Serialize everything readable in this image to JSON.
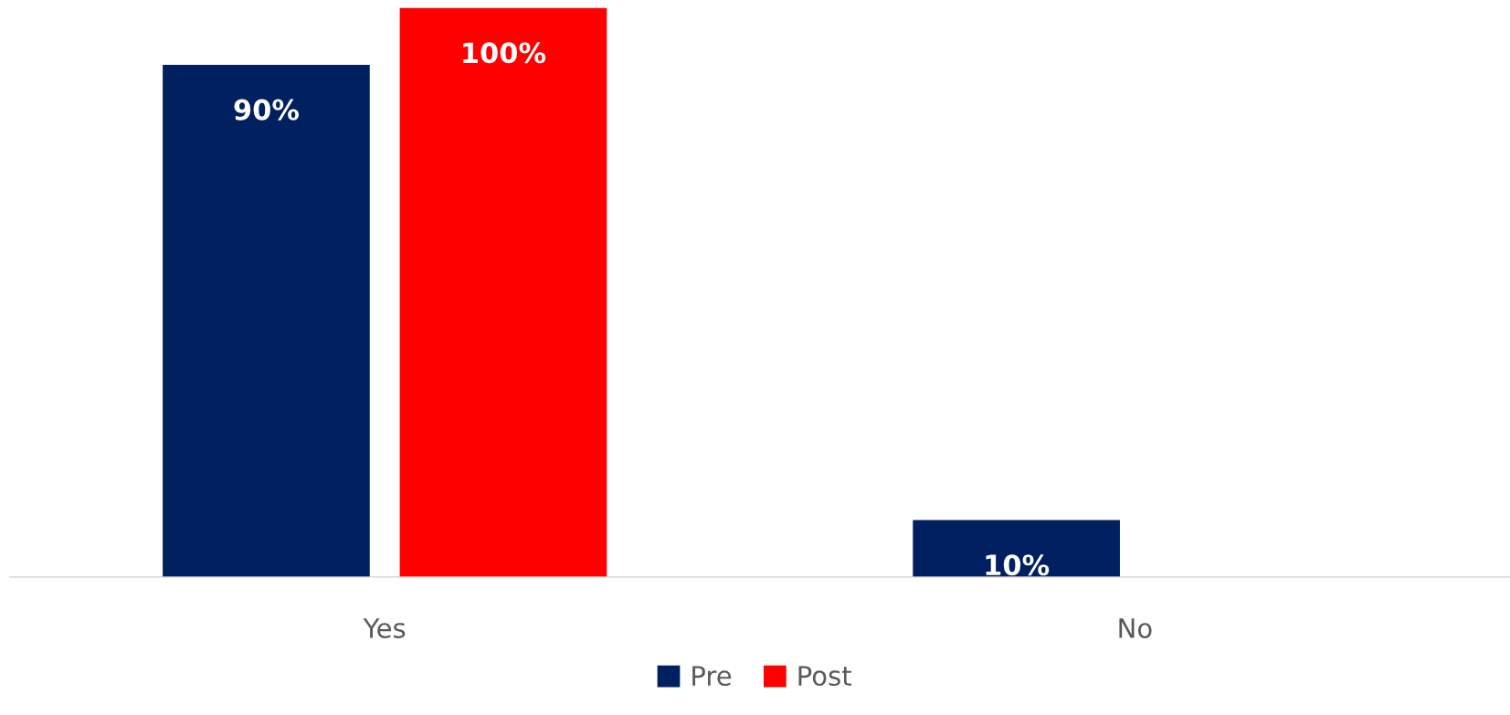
{
  "chart_data": {
    "type": "bar",
    "categories": [
      "Yes",
      "No"
    ],
    "series": [
      {
        "name": "Pre",
        "color": "#002060",
        "values": [
          90,
          10
        ],
        "value_labels": [
          "90%",
          "10%"
        ]
      },
      {
        "name": "Post",
        "color": "#ff0000",
        "values": [
          100,
          null
        ],
        "value_labels": [
          "100%",
          null
        ]
      }
    ],
    "legend": "bottom",
    "grid": false
  }
}
